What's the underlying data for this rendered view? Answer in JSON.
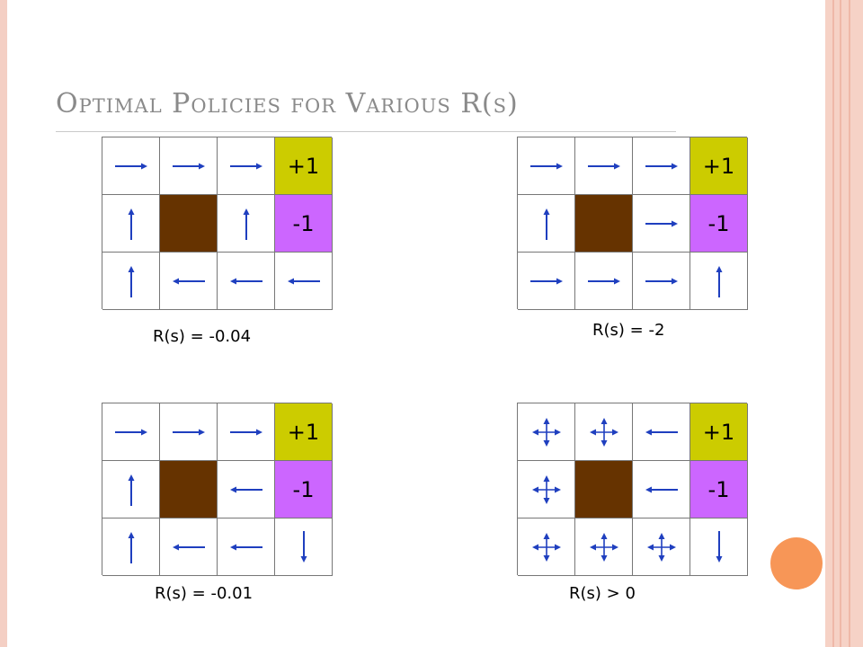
{
  "slide": {
    "title": "Optimal Policies for Various R(s)"
  },
  "colors": {
    "plus_cell": "#cccc00",
    "minus_cell": "#cc66ff",
    "wall_cell": "#663300",
    "arrow": "#1f3fbf"
  },
  "panels": [
    {
      "caption": "R(s) = -0.04",
      "cells": [
        [
          "right-arrow-icon",
          "right-arrow-icon",
          "right-arrow-icon",
          "+1"
        ],
        [
          "up-arrow-icon",
          "wall",
          "up-arrow-icon",
          "-1"
        ],
        [
          "up-arrow-icon",
          "left-arrow-icon",
          "left-arrow-icon",
          "left-arrow-icon"
        ]
      ]
    },
    {
      "caption": "R(s) = -2",
      "cells": [
        [
          "right-arrow-icon",
          "right-arrow-icon",
          "right-arrow-icon",
          "+1"
        ],
        [
          "up-arrow-icon",
          "wall",
          "right-arrow-icon",
          "-1"
        ],
        [
          "right-arrow-icon",
          "right-arrow-icon",
          "right-arrow-icon",
          "up-arrow-icon"
        ]
      ]
    },
    {
      "caption": "R(s) = -0.01",
      "cells": [
        [
          "right-arrow-icon",
          "right-arrow-icon",
          "right-arrow-icon",
          "+1"
        ],
        [
          "up-arrow-icon",
          "wall",
          "left-arrow-icon",
          "-1"
        ],
        [
          "up-arrow-icon",
          "left-arrow-icon",
          "left-arrow-icon",
          "down-arrow-icon"
        ]
      ]
    },
    {
      "caption": "R(s) > 0",
      "cells": [
        [
          "four-way-arrow-icon",
          "four-way-arrow-icon",
          "left-arrow-icon",
          "+1"
        ],
        [
          "four-way-arrow-icon",
          "wall",
          "left-arrow-icon",
          "-1"
        ],
        [
          "four-way-arrow-icon",
          "four-way-arrow-icon",
          "four-way-arrow-icon",
          "down-arrow-icon"
        ]
      ]
    }
  ]
}
